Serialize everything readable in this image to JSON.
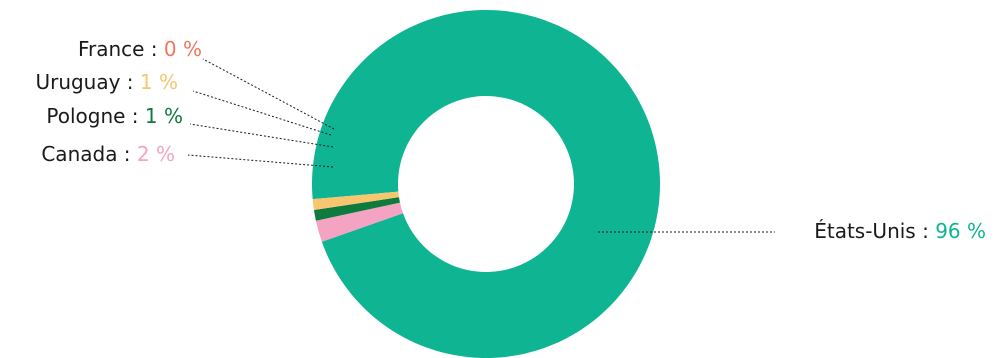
{
  "chart_data": {
    "type": "pie",
    "variant": "donut",
    "title": "",
    "slices": [
      {
        "label": "États-Unis",
        "value": 96,
        "value_text": "96 %",
        "color": "#0fb493"
      },
      {
        "label": "Canada",
        "value": 2,
        "value_text": "2 %",
        "color": "#f4a3c2"
      },
      {
        "label": "Pologne",
        "value": 1,
        "value_text": "1 %",
        "color": "#0f7a3e"
      },
      {
        "label": "Uruguay",
        "value": 1,
        "value_text": "1 %",
        "color": "#f7c66e"
      },
      {
        "label": "France",
        "value": 0,
        "value_text": "0 %",
        "color": "#f0765e"
      }
    ],
    "separator": " : ",
    "label_color": "#1a1a1a",
    "leader_color": "#1a1a1a"
  }
}
